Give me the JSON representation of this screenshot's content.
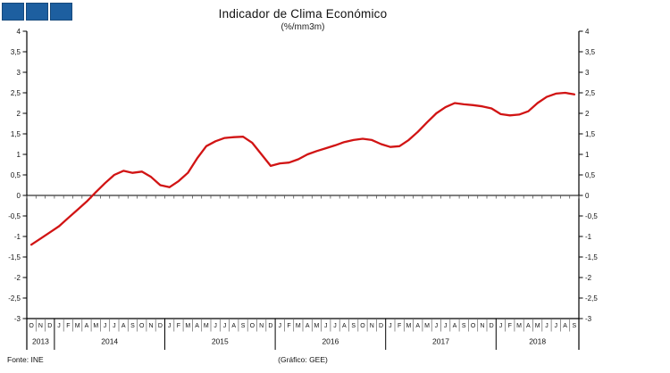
{
  "header": {
    "title": "Indicador de Clima Económico",
    "subtitle": "(%/mm3m)"
  },
  "logo": {
    "square_count": 3,
    "fill": "#1d5fa0",
    "border": "#16497c"
  },
  "footer": {
    "source": "Fonte: INE",
    "credit": "(Gráfico: GEE)"
  },
  "chart_data": {
    "type": "line",
    "title": "Indicador de Clima Económico",
    "subtitle": "(%/mm3m)",
    "ylim": [
      -3,
      4
    ],
    "ytick_step": 0.5,
    "ytick_labels": [
      "4",
      "3,5",
      "3",
      "2,5",
      "2",
      "1,5",
      "1",
      "0,5",
      "0",
      "-0,5",
      "-1",
      "-1,5",
      "-2",
      "-2,5",
      "-3"
    ],
    "grid": false,
    "legend": "none",
    "line_color": "#d11414",
    "axis_color": "#000000",
    "years": [
      {
        "label": "2013",
        "months": [
          "O",
          "N",
          "D"
        ]
      },
      {
        "label": "2014",
        "months": [
          "J",
          "F",
          "M",
          "A",
          "M",
          "J",
          "J",
          "A",
          "S",
          "O",
          "N",
          "D"
        ]
      },
      {
        "label": "2015",
        "months": [
          "J",
          "F",
          "M",
          "A",
          "M",
          "J",
          "J",
          "A",
          "S",
          "O",
          "N",
          "D"
        ]
      },
      {
        "label": "2016",
        "months": [
          "J",
          "F",
          "M",
          "A",
          "M",
          "J",
          "J",
          "A",
          "S",
          "O",
          "N",
          "D"
        ]
      },
      {
        "label": "2017",
        "months": [
          "J",
          "F",
          "M",
          "A",
          "M",
          "J",
          "J",
          "A",
          "S",
          "O",
          "N",
          "D"
        ]
      },
      {
        "label": "2018",
        "months": [
          "J",
          "F",
          "M",
          "A",
          "M",
          "J",
          "J",
          "A",
          "S"
        ]
      }
    ],
    "series": [
      {
        "name": "Indicador de Clima Económico",
        "values": [
          -1.2,
          -1.05,
          -0.9,
          -0.75,
          -0.55,
          -0.35,
          -0.15,
          0.08,
          0.3,
          0.5,
          0.6,
          0.55,
          0.58,
          0.45,
          0.25,
          0.2,
          0.35,
          0.55,
          0.9,
          1.2,
          1.32,
          1.4,
          1.42,
          1.43,
          1.28,
          1.0,
          0.72,
          0.78,
          0.8,
          0.88,
          1.0,
          1.08,
          1.15,
          1.22,
          1.3,
          1.35,
          1.38,
          1.35,
          1.25,
          1.18,
          1.2,
          1.35,
          1.55,
          1.78,
          2.0,
          2.15,
          2.25,
          2.22,
          2.2,
          2.17,
          2.12,
          1.98,
          1.95,
          1.97,
          2.05,
          2.25,
          2.4,
          2.48,
          2.5,
          2.46
        ]
      }
    ]
  }
}
